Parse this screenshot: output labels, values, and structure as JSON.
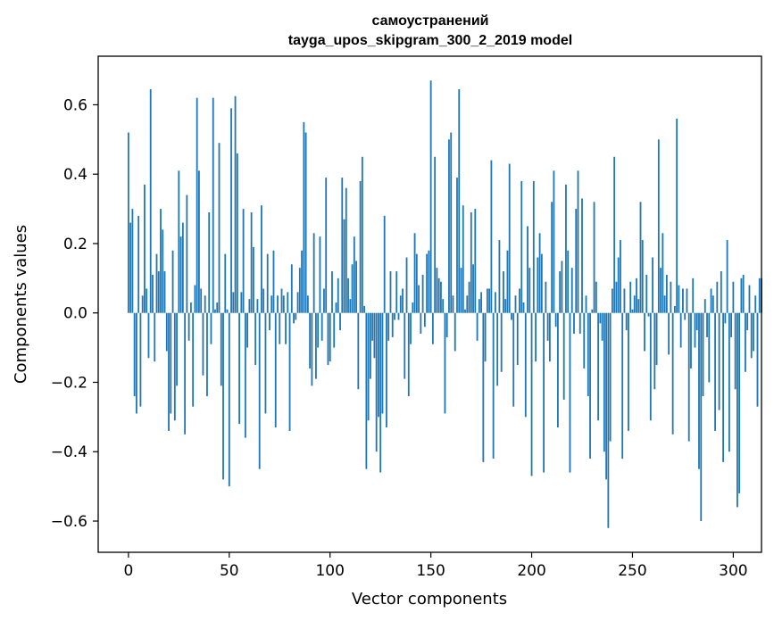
{
  "chart_data": {
    "type": "bar",
    "title_line1": "самоустранений",
    "title_line2": "tayga_upos_skipgram_300_2_2019 model",
    "xlabel": "Vector components",
    "ylabel": "Components values",
    "xlim": [
      -15,
      314
    ],
    "ylim": [
      -0.69,
      0.74
    ],
    "xticks": [
      0,
      50,
      100,
      150,
      200,
      250,
      300
    ],
    "xtick_labels": [
      "0",
      "50",
      "100",
      "150",
      "200",
      "250",
      "300"
    ],
    "yticks": [
      -0.6,
      -0.4,
      -0.2,
      0.0,
      0.2,
      0.4,
      0.6
    ],
    "ytick_labels": [
      "−0.6",
      "−0.4",
      "−0.2",
      "0.0",
      "0.2",
      "0.4",
      "0.6"
    ],
    "bar_color": "#1f77b4",
    "grid": false,
    "values": [
      0.52,
      0.26,
      0.3,
      -0.24,
      -0.29,
      0.28,
      -0.27,
      0.05,
      0.37,
      0.07,
      -0.13,
      0.645,
      0.11,
      -0.14,
      0.17,
      0.12,
      0.3,
      0.24,
      0.12,
      -0.11,
      -0.34,
      -0.29,
      0.18,
      -0.31,
      -0.21,
      0.41,
      0.22,
      0.26,
      -0.35,
      0.34,
      -0.08,
      0.03,
      -0.27,
      0.08,
      0.62,
      0.41,
      0.07,
      -0.18,
      0.05,
      -0.24,
      0.29,
      -0.09,
      0.62,
      0.01,
      0.03,
      0.49,
      -0.21,
      -0.48,
      0.17,
      0.01,
      -0.5,
      0.59,
      0.06,
      0.625,
      0.46,
      -0.32,
      0.06,
      0.3,
      -0.36,
      -0.1,
      0.04,
      0.29,
      0.19,
      -0.15,
      0.04,
      -0.45,
      0.31,
      0.07,
      -0.29,
      0.17,
      -0.05,
      0.05,
      0.18,
      -0.33,
      0.05,
      -0.09,
      0.07,
      0.05,
      -0.09,
      0.06,
      -0.34,
      0.14,
      -0.03,
      -0.02,
      0.06,
      0.13,
      0.18,
      0.55,
      0.52,
      0.05,
      -0.16,
      -0.21,
      0.23,
      -0.19,
      -0.1,
      0.22,
      -0.08,
      0.07,
      0.39,
      -0.15,
      -0.14,
      0.12,
      -0.1,
      0.03,
      0.1,
      -0.05,
      0.39,
      0.27,
      0.36,
      0.1,
      0.04,
      0.14,
      0.22,
      0.15,
      -0.22,
      0.38,
      0.45,
      0.02,
      -0.45,
      -0.31,
      -0.19,
      -0.08,
      -0.13,
      -0.4,
      -0.3,
      -0.46,
      -0.29,
      0.28,
      -0.33,
      -0.08,
      0.12,
      -0.07,
      -0.02,
      0.12,
      -0.02,
      0.05,
      0.07,
      -0.19,
      0.16,
      -0.24,
      -0.09,
      0.03,
      0.23,
      0.17,
      0.08,
      -0.06,
      0.11,
      -0.04,
      0.17,
      0.18,
      0.67,
      -0.09,
      0.45,
      0.13,
      0.1,
      0.09,
      0.04,
      -0.29,
      -0.07,
      0.5,
      0.52,
      0.05,
      -0.11,
      0.39,
      0.645,
      0.13,
      0.31,
      0.01,
      0.05,
      0.09,
      0.29,
      0.14,
      0.3,
      -0.08,
      0.04,
      0.06,
      -0.43,
      -0.14,
      0.07,
      0.07,
      0.44,
      -0.42,
      0.06,
      -0.21,
      0.21,
      -0.17,
      0.12,
      0.04,
      0.18,
      0.43,
      -0.02,
      -0.27,
      0.05,
      -0.15,
      0.07,
      0.38,
      0.03,
      -0.3,
      0.25,
      0.13,
      -0.47,
      0.38,
      -0.14,
      0.16,
      0.23,
      0.17,
      -0.46,
      0.09,
      -0.08,
      -0.14,
      0.32,
      0.41,
      -0.04,
      -0.33,
      0.12,
      0.15,
      -0.25,
      0.37,
      0.18,
      -0.46,
      0.13,
      -0.06,
      0.3,
      0.41,
      -0.06,
      0.33,
      -0.16,
      0.05,
      -0.24,
      -0.42,
      0.01,
      0.32,
      0.09,
      -0.31,
      -0.03,
      -0.08,
      -0.4,
      -0.48,
      -0.62,
      -0.37,
      0.07,
      0.45,
      0.09,
      0.16,
      0.21,
      -0.42,
      0.07,
      -0.05,
      -0.34,
      0.09,
      0.01,
      0.05,
      0.1,
      0.04,
      0.32,
      0.21,
      -0.11,
      0.11,
      -0.01,
      -0.31,
      0.16,
      -0.22,
      -0.15,
      0.5,
      0.13,
      0.23,
      0.05,
      0.11,
      -0.12,
      0.09,
      -0.35,
      0.02,
      0.56,
      0.08,
      -0.1,
      0.07,
      -0.02,
      0.07,
      -0.37,
      -0.16,
      0.1,
      -0.1,
      -0.05,
      -0.45,
      -0.6,
      -0.24,
      0.04,
      -0.07,
      -0.2,
      0.07,
      0.05,
      -0.34,
      0.09,
      -0.28,
      0.12,
      -0.43,
      -0.03,
      0.21,
      -0.4,
      -0.07,
      0.09,
      -0.22,
      -0.56,
      -0.52,
      0.1,
      0.11,
      -0.17,
      -0.05,
      0.08,
      -0.13,
      -0.11,
      0.05,
      -0.27,
      0.1,
      0.1
    ]
  }
}
